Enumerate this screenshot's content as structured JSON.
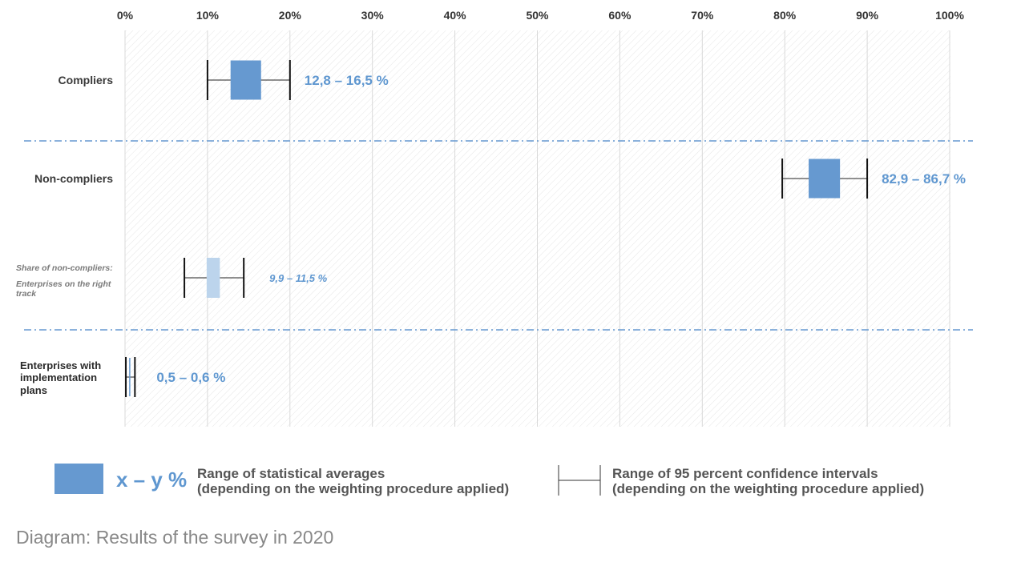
{
  "chart_data": {
    "type": "range",
    "xlim": [
      0,
      100
    ],
    "x_ticks": [
      "0%",
      "10%",
      "20%",
      "30%",
      "40%",
      "50%",
      "60%",
      "70%",
      "80%",
      "90%",
      "100%"
    ],
    "grid": true,
    "rows": [
      {
        "label_lines": [
          "Compliers"
        ],
        "style": "main",
        "avg_low": 12.8,
        "avg_high": 16.5,
        "ci_low": 10.0,
        "ci_high": 20.0,
        "range_label": "12,8 – 16,5 %"
      },
      {
        "label_lines": [
          "Non-compliers"
        ],
        "style": "main",
        "avg_low": 82.9,
        "avg_high": 86.7,
        "ci_low": 79.7,
        "ci_high": 90.0,
        "range_label": "82,9 – 86,7 %"
      },
      {
        "label_lines": [
          "Share of non-compliers:",
          "Enterprises on the right",
          "track"
        ],
        "style": "sub",
        "avg_low": 9.9,
        "avg_high": 11.5,
        "ci_low": 7.2,
        "ci_high": 14.4,
        "range_label": "9,9 – 11,5 %"
      },
      {
        "label_lines": [
          "Enterprises with",
          "implementation",
          "plans"
        ],
        "style": "small",
        "avg_low": 0.5,
        "avg_high": 0.6,
        "ci_low": 0.1,
        "ci_high": 1.2,
        "range_label": "0,5 – 0,6 %"
      }
    ],
    "colors": {
      "average": "#6699d0",
      "average_sub": "#bcd4ec",
      "label": "#5f97d0",
      "separator": "#6699d0"
    }
  },
  "legend": {
    "swatch_text": "x – y %",
    "avg_line1": "Range of statistical averages",
    "avg_line2": "(depending on the weighting procedure applied)",
    "ci_line1": "Range of 95 percent confidence intervals",
    "ci_line2": "(depending on the weighting procedure applied)"
  },
  "caption": "Diagram: Results of the survey in 2020"
}
